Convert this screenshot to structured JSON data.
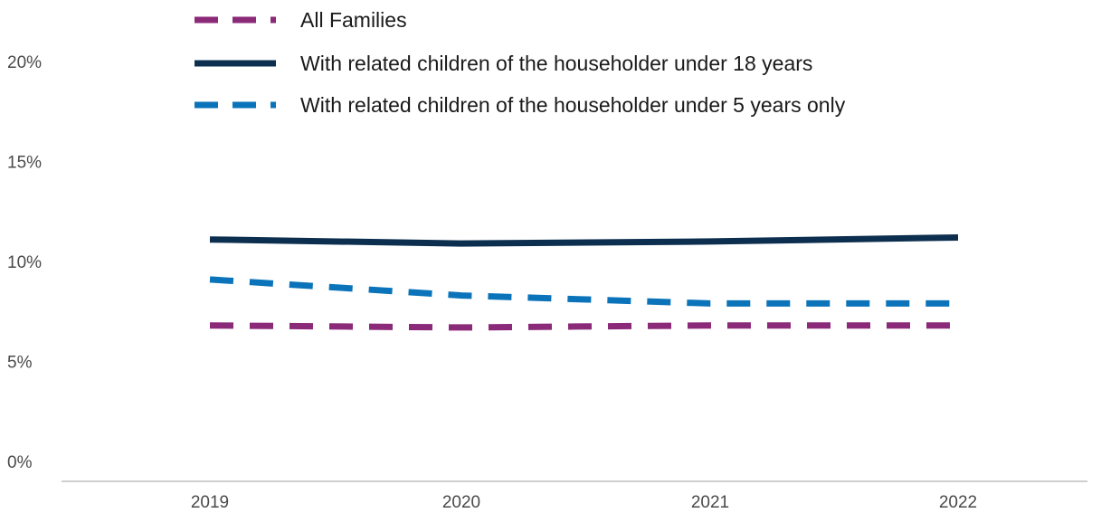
{
  "chart_data": {
    "type": "line",
    "title": "",
    "xlabel": "",
    "ylabel": "",
    "categories": [
      "2019",
      "2020",
      "2021",
      "2022"
    ],
    "ylim": [
      0,
      20
    ],
    "yticks": [
      0,
      5,
      10,
      15,
      20
    ],
    "ytick_labels": [
      "0%",
      "5%",
      "10%",
      "15%",
      "20%"
    ],
    "grid": false,
    "legend_position": "top",
    "series": [
      {
        "name": "All Families",
        "values": [
          6.8,
          6.7,
          6.8,
          6.8
        ],
        "color": "#8b2a78",
        "style": "dashed"
      },
      {
        "name": "With related children of the householder under 18 years",
        "values": [
          11.1,
          10.9,
          11.0,
          11.2
        ],
        "color": "#0d2f4f",
        "style": "solid"
      },
      {
        "name": "With related children of the householder under 5 years only",
        "values": [
          9.1,
          8.3,
          7.9,
          7.9
        ],
        "color": "#0a73b9",
        "style": "dashed"
      }
    ]
  }
}
